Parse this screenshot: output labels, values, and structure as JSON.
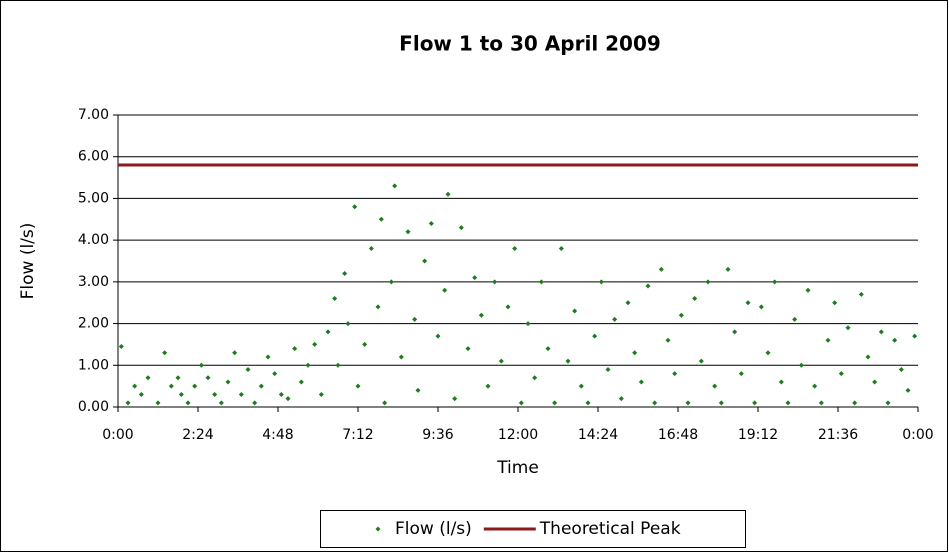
{
  "chart_data": {
    "type": "scatter",
    "title": "Flow 1 to 30 April 2009",
    "x_label": "Time",
    "y_label": "Flow (l/s)",
    "xlim": [
      0,
      24
    ],
    "ylim": [
      0,
      7
    ],
    "xticks": [
      {
        "value": 0,
        "label": "0:00"
      },
      {
        "value": 2.4,
        "label": "2:24"
      },
      {
        "value": 4.8,
        "label": "4:48"
      },
      {
        "value": 7.2,
        "label": "7:12"
      },
      {
        "value": 9.6,
        "label": "9:36"
      },
      {
        "value": 12,
        "label": "12:00"
      },
      {
        "value": 14.4,
        "label": "14:24"
      },
      {
        "value": 16.8,
        "label": "16:48"
      },
      {
        "value": 19.2,
        "label": "19:12"
      },
      {
        "value": 21.6,
        "label": "21:36"
      },
      {
        "value": 24,
        "label": "0:00"
      }
    ],
    "yticks": [
      {
        "value": 0,
        "label": "0.00"
      },
      {
        "value": 1,
        "label": "1.00"
      },
      {
        "value": 2,
        "label": "2.00"
      },
      {
        "value": 3,
        "label": "3.00"
      },
      {
        "value": 4,
        "label": "4.00"
      },
      {
        "value": 5,
        "label": "5.00"
      },
      {
        "value": 6,
        "label": "6.00"
      },
      {
        "value": 7,
        "label": "7.00"
      }
    ],
    "grid": true,
    "legend": "bottom",
    "series": [
      {
        "name": "Flow (l/s)",
        "type": "scatter",
        "color": "#1e7b1e",
        "x": [
          0.1,
          0.3,
          0.5,
          0.7,
          0.9,
          1.2,
          1.4,
          1.6,
          1.8,
          1.9,
          2.1,
          2.3,
          2.5,
          2.7,
          2.9,
          3.1,
          3.3,
          3.5,
          3.7,
          3.9,
          4.1,
          4.3,
          4.5,
          4.7,
          4.9,
          5.1,
          5.3,
          5.5,
          5.7,
          5.9,
          6.1,
          6.3,
          6.5,
          6.6,
          6.8,
          6.9,
          7.1,
          7.2,
          7.4,
          7.6,
          7.8,
          7.9,
          8.0,
          8.2,
          8.3,
          8.5,
          8.7,
          8.9,
          9.0,
          9.2,
          9.4,
          9.6,
          9.8,
          9.9,
          10.1,
          10.3,
          10.5,
          10.7,
          10.9,
          11.1,
          11.3,
          11.5,
          11.7,
          11.9,
          12.1,
          12.3,
          12.5,
          12.7,
          12.9,
          13.1,
          13.3,
          13.5,
          13.7,
          13.9,
          14.1,
          14.3,
          14.5,
          14.7,
          14.9,
          15.1,
          15.3,
          15.5,
          15.7,
          15.9,
          16.1,
          16.3,
          16.5,
          16.7,
          16.9,
          17.1,
          17.3,
          17.5,
          17.7,
          17.9,
          18.1,
          18.3,
          18.5,
          18.7,
          18.9,
          19.1,
          19.3,
          19.5,
          19.7,
          19.9,
          20.1,
          20.3,
          20.5,
          20.7,
          20.9,
          21.1,
          21.3,
          21.5,
          21.7,
          21.9,
          22.1,
          22.3,
          22.5,
          22.7,
          22.9,
          23.1,
          23.3,
          23.5,
          23.7,
          23.9
        ],
        "values": [
          1.45,
          0.1,
          0.5,
          0.3,
          0.7,
          0.1,
          1.3,
          0.5,
          0.7,
          0.3,
          0.1,
          0.5,
          1.0,
          0.7,
          0.3,
          0.1,
          0.6,
          1.3,
          0.3,
          0.9,
          0.1,
          0.5,
          1.2,
          0.8,
          0.3,
          0.2,
          1.4,
          0.6,
          1.0,
          1.5,
          0.3,
          1.8,
          2.6,
          1.0,
          3.2,
          2.0,
          4.8,
          0.5,
          1.5,
          3.8,
          2.4,
          4.5,
          0.1,
          3.0,
          5.3,
          1.2,
          4.2,
          2.1,
          0.4,
          3.5,
          4.4,
          1.7,
          2.8,
          5.1,
          0.2,
          4.3,
          1.4,
          3.1,
          2.2,
          0.5,
          3.0,
          1.1,
          2.4,
          3.8,
          0.1,
          2.0,
          0.7,
          3.0,
          1.4,
          0.1,
          3.8,
          1.1,
          2.3,
          0.5,
          0.1,
          1.7,
          3.0,
          0.9,
          2.1,
          0.2,
          2.5,
          1.3,
          0.6,
          2.9,
          0.1,
          3.3,
          1.6,
          0.8,
          2.2,
          0.1,
          2.6,
          1.1,
          3.0,
          0.5,
          0.1,
          3.3,
          1.8,
          0.8,
          2.5,
          0.1,
          2.4,
          1.3,
          3.0,
          0.6,
          0.1,
          2.1,
          1.0,
          2.8,
          0.5,
          0.1,
          1.6,
          2.5,
          0.8,
          1.9,
          0.1,
          2.7,
          1.2,
          0.6,
          1.8,
          0.1,
          1.6,
          0.9,
          0.4,
          1.7
        ]
      },
      {
        "name": "Theoretical Peak",
        "type": "line",
        "color": "#8b1a1a",
        "x": [
          0,
          24
        ],
        "values": [
          5.8,
          5.8
        ]
      }
    ]
  }
}
